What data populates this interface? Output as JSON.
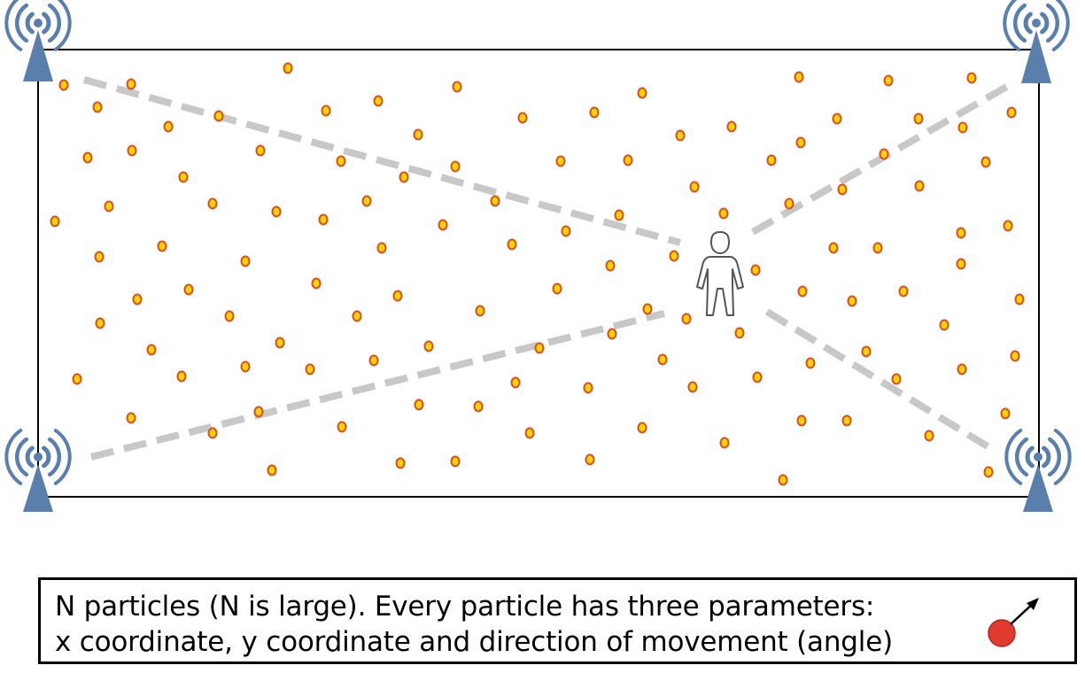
{
  "caption": {
    "line1": "N particles (N is large). Every particle has three parameters:",
    "line2": "x coordinate, y coordinate and direction of movement (angle)"
  },
  "icons": {
    "antenna": "wifi-antenna-icon",
    "person": "person-icon",
    "particle": "particle-with-direction-arrow-icon"
  },
  "colors": {
    "antenna": "#5b7fad",
    "particle_fill": "#ffd200",
    "particle_stroke": "#d9501e",
    "signal_path": "#c8c8c8",
    "legend_particle": "#e03a2f"
  }
}
